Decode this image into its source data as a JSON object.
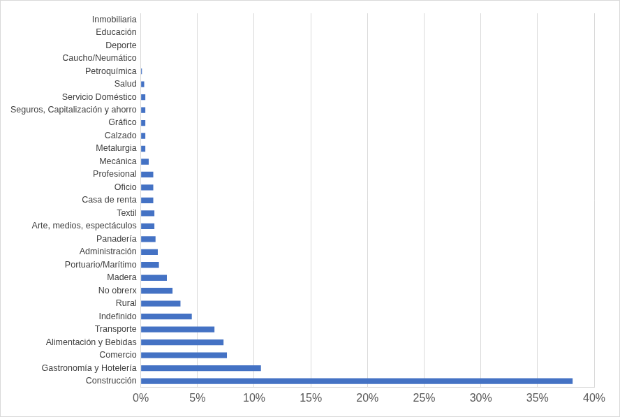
{
  "chart_data": {
    "type": "bar",
    "orientation": "horizontal",
    "categories": [
      "Inmobiliaria",
      "Educación",
      "Deporte",
      "Caucho/Neumático",
      "Petroquímica",
      "Salud",
      "Servicio Doméstico",
      "Seguros, Capitalización y ahorro",
      "Gráfico",
      "Calzado",
      "Metalurgia",
      "Mecánica",
      "Profesional",
      "Oficio",
      "Casa de renta",
      "Textil",
      "Arte, medios, espectáculos",
      "Panadería",
      "Administración",
      "Portuario/Marítimo",
      "Madera",
      "No obrerx",
      "Rural",
      "Indefinido",
      "Transporte",
      "Alimentación y Bebidas",
      "Comercio",
      "Gastronomía y Hotelería",
      "Construcción"
    ],
    "values": [
      0,
      0,
      0,
      0,
      0.1,
      0.3,
      0.4,
      0.4,
      0.4,
      0.4,
      0.4,
      0.7,
      1.1,
      1.1,
      1.1,
      1.2,
      1.2,
      1.3,
      1.5,
      1.6,
      2.3,
      2.8,
      3.5,
      4.5,
      6.5,
      7.3,
      7.6,
      10.6,
      38.1
    ],
    "color": "#4472c4",
    "xlim": [
      0,
      40
    ],
    "xticks": [
      {
        "value": 0,
        "label": "0%"
      },
      {
        "value": 5,
        "label": "5%"
      },
      {
        "value": 10,
        "label": "10%"
      },
      {
        "value": 15,
        "label": "15%"
      },
      {
        "value": 20,
        "label": "20%"
      },
      {
        "value": 25,
        "label": "25%"
      },
      {
        "value": 30,
        "label": "30%"
      },
      {
        "value": 35,
        "label": "35%"
      },
      {
        "value": 40,
        "label": "40%"
      }
    ],
    "grid": true
  }
}
